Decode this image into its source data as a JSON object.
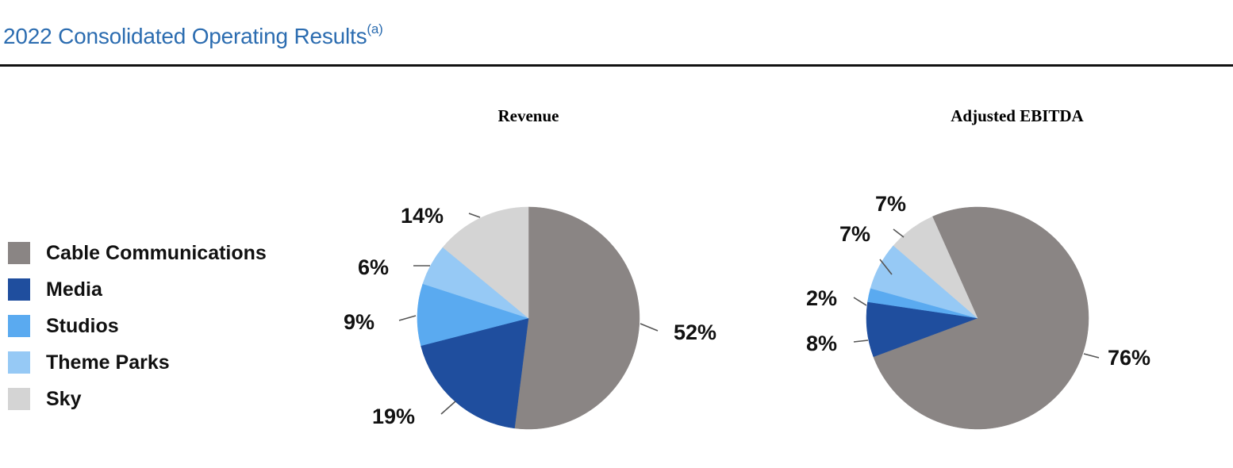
{
  "page": {
    "title": "2022 Consolidated Operating Results",
    "title_superscript": "(a)"
  },
  "colors": {
    "title": "#2b6cb0",
    "Cable Communications": "#8a8584",
    "Media": "#1f4e9e",
    "Studios": "#5aaaf0",
    "Theme Parks": "#96c9f5",
    "Sky": "#d4d4d4"
  },
  "legend": {
    "items": [
      {
        "label": "Cable Communications",
        "color": "#8a8584"
      },
      {
        "label": "Media",
        "color": "#1f4e9e"
      },
      {
        "label": "Studios",
        "color": "#5aaaf0"
      },
      {
        "label": "Theme Parks",
        "color": "#96c9f5"
      },
      {
        "label": "Sky",
        "color": "#d4d4d4"
      }
    ]
  },
  "chart_data": [
    {
      "type": "pie",
      "title": "Revenue",
      "categories": [
        "Cable Communications",
        "Media",
        "Studios",
        "Theme Parks",
        "Sky"
      ],
      "values": [
        52,
        19,
        9,
        6,
        14
      ],
      "labels": [
        "52%",
        "19%",
        "9%",
        "6%",
        "14%"
      ],
      "unit": "%",
      "start_angle": "12 o'clock",
      "direction": "clockwise"
    },
    {
      "type": "pie",
      "title": "Adjusted EBITDA",
      "categories": [
        "Cable Communications",
        "Media",
        "Studios",
        "Theme Parks",
        "Sky"
      ],
      "values": [
        76,
        8,
        2,
        7,
        7
      ],
      "labels": [
        "76%",
        "8%",
        "2%",
        "7%",
        "7%"
      ],
      "unit": "%",
      "start_angle": "just before 12 o'clock",
      "direction": "clockwise"
    }
  ]
}
